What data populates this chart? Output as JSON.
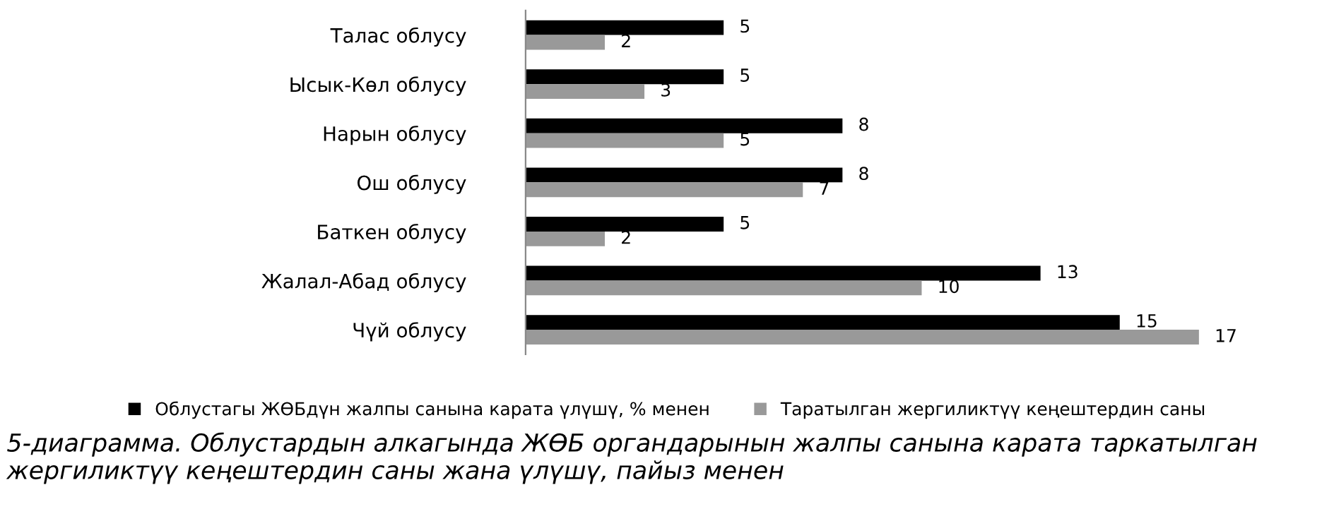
{
  "chart_data": {
    "type": "bar",
    "orientation": "horizontal",
    "categories": [
      "Талас облусу",
      "Ысык-Көл облусу",
      "Нарын облусу",
      "Ош облусу",
      "Баткен облусу",
      "Жалал-Абад облусу",
      "Чүй облусу"
    ],
    "series": [
      {
        "name": "Облустагы ЖӨБдүн жалпы санына карата үлүшү, % менен",
        "color": "#000000",
        "values": [
          5,
          5,
          8,
          8,
          5,
          13,
          15
        ]
      },
      {
        "name": "Таратылган жергиликтүү кеңештердин саны",
        "color": "#999999",
        "values": [
          2,
          3,
          5,
          7,
          2,
          10,
          17
        ]
      }
    ],
    "data_labels": true,
    "legend": "bottom",
    "annotations": [
      "5-диаграмма. Облустардын алкагында ЖӨБ органдарынын жалпы санына карата таркатылган жергиликтүү кеңештердин саны жана үлүшү, пайыз менен"
    ]
  }
}
